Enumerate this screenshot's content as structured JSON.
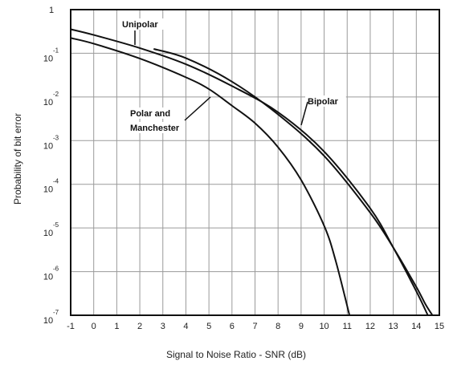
{
  "chart_data": {
    "type": "line",
    "xlabel": "Signal to Noise Ratio - SNR (dB)",
    "ylabel": "Probability of bit error",
    "xlim": [
      -1,
      15
    ],
    "ylim_log10": [
      -7,
      0
    ],
    "y_scale": "log",
    "grid": true,
    "x_ticks": [
      "-1",
      "0",
      "1",
      "2",
      "3",
      "4",
      "5",
      "6",
      "7",
      "8",
      "9",
      "10",
      "11",
      "12",
      "13",
      "14",
      "15"
    ],
    "y_ticks": [
      {
        "base": "1",
        "exp": ""
      },
      {
        "base": "10",
        "exp": "-1"
      },
      {
        "base": "10",
        "exp": "-2"
      },
      {
        "base": "10",
        "exp": "-3"
      },
      {
        "base": "10",
        "exp": "-4"
      },
      {
        "base": "10",
        "exp": "-5"
      },
      {
        "base": "10",
        "exp": "-6"
      },
      {
        "base": "10",
        "exp": "-7"
      }
    ],
    "series": [
      {
        "name": "Unipolar",
        "x": [
          2.6,
          4,
          6,
          8,
          10,
          12,
          13,
          14,
          14.4,
          14.7
        ],
        "y_log10": [
          -0.9,
          -1.11,
          -1.65,
          -2.4,
          -3.35,
          -4.65,
          -5.45,
          -6.35,
          -6.75,
          -7.0
        ]
      },
      {
        "name": "Bipolar",
        "x": [
          -1,
          0,
          2,
          4,
          6,
          8,
          10,
          12,
          13,
          14,
          14.5
        ],
        "y_log10": [
          -0.45,
          -0.58,
          -0.88,
          -1.25,
          -1.75,
          -2.35,
          -3.25,
          -4.55,
          -5.45,
          -6.45,
          -7.0
        ]
      },
      {
        "name": "Polar and Manchester",
        "x": [
          -1,
          0,
          2,
          4,
          5,
          6,
          7,
          8,
          9,
          10,
          10.5,
          11.1
        ],
        "y_log10": [
          -0.65,
          -0.78,
          -1.12,
          -1.55,
          -1.82,
          -2.2,
          -2.6,
          -3.15,
          -3.9,
          -4.95,
          -5.75,
          -7.0
        ]
      }
    ],
    "annotations": [
      {
        "text": "Unipolar",
        "series": "Unipolar"
      },
      {
        "text": "Bipolar",
        "series": "Bipolar"
      },
      {
        "text": "Polar and",
        "series": "Polar and Manchester"
      },
      {
        "text": "Manchester",
        "series": "Polar and Manchester"
      }
    ]
  }
}
